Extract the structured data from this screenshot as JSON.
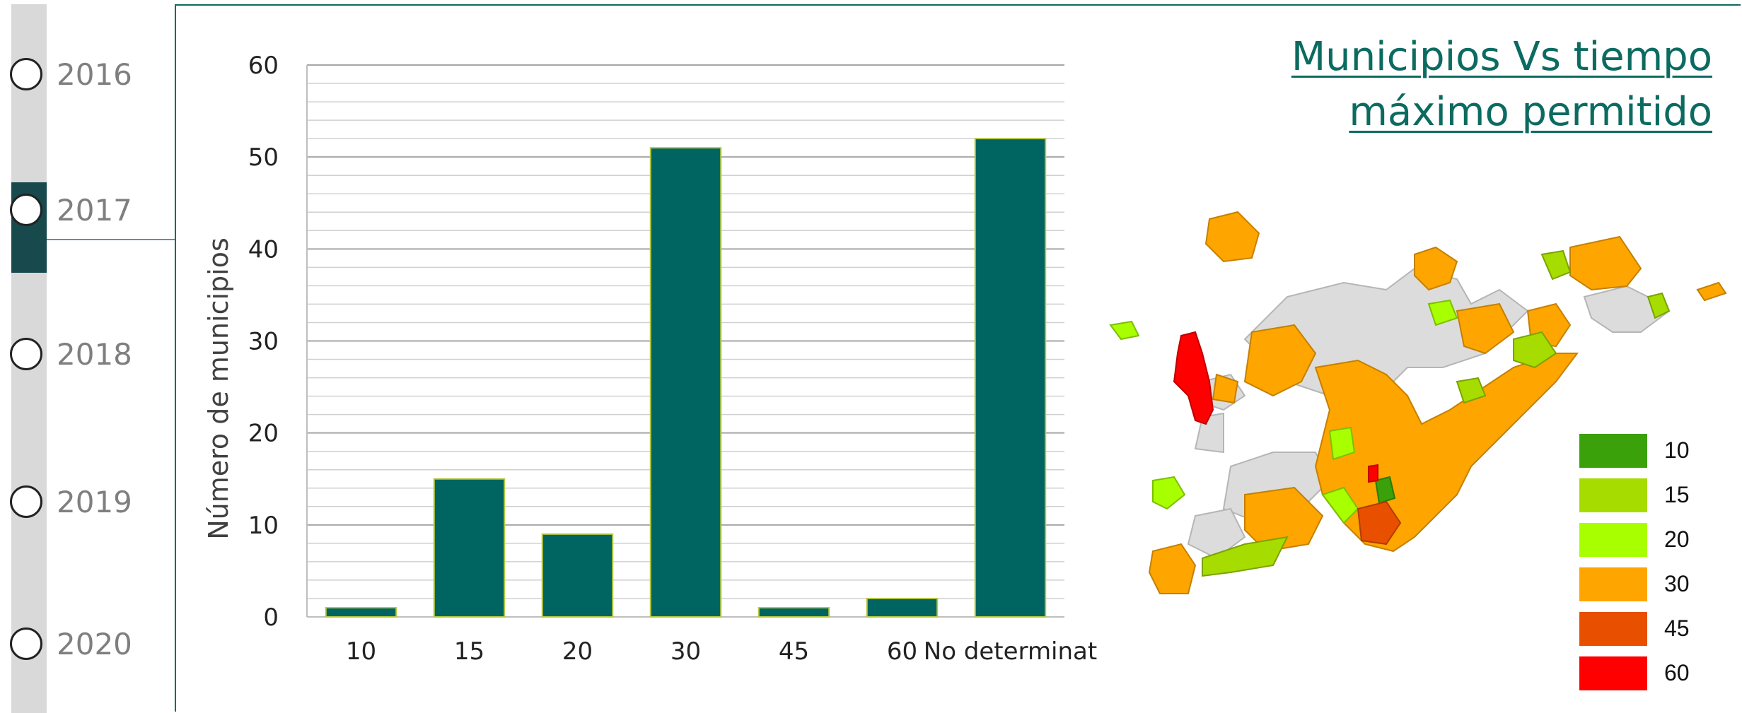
{
  "timeline": {
    "years": [
      "2016",
      "2017",
      "2018",
      "2019",
      "2020"
    ],
    "active": "2017"
  },
  "title": {
    "line1": "Municipios Vs tiempo",
    "line2": "máximo permitido"
  },
  "colors": {
    "bar": "#006460",
    "bar_edge": "#b7c843",
    "accent": "#0c6b61"
  },
  "chart_data": {
    "type": "bar",
    "categories": [
      "10",
      "15",
      "20",
      "30",
      "45",
      "60",
      "No determinat"
    ],
    "values": [
      1,
      15,
      9,
      51,
      1,
      2,
      52
    ],
    "ylabel": "Número de municipios",
    "xlabel": "",
    "ylim": [
      0,
      60
    ],
    "yticks": [
      0,
      10,
      20,
      30,
      40,
      50,
      60
    ],
    "grid": true
  },
  "map": {
    "legend": [
      {
        "label": "10",
        "color": "#3aa10a"
      },
      {
        "label": "15",
        "color": "#a6dc00"
      },
      {
        "label": "20",
        "color": "#a8ff00"
      },
      {
        "label": "30",
        "color": "#ffa500"
      },
      {
        "label": "45",
        "color": "#e85000"
      },
      {
        "label": "60",
        "color": "#ff0000"
      }
    ],
    "no_data_color": "#dcdcdc"
  }
}
